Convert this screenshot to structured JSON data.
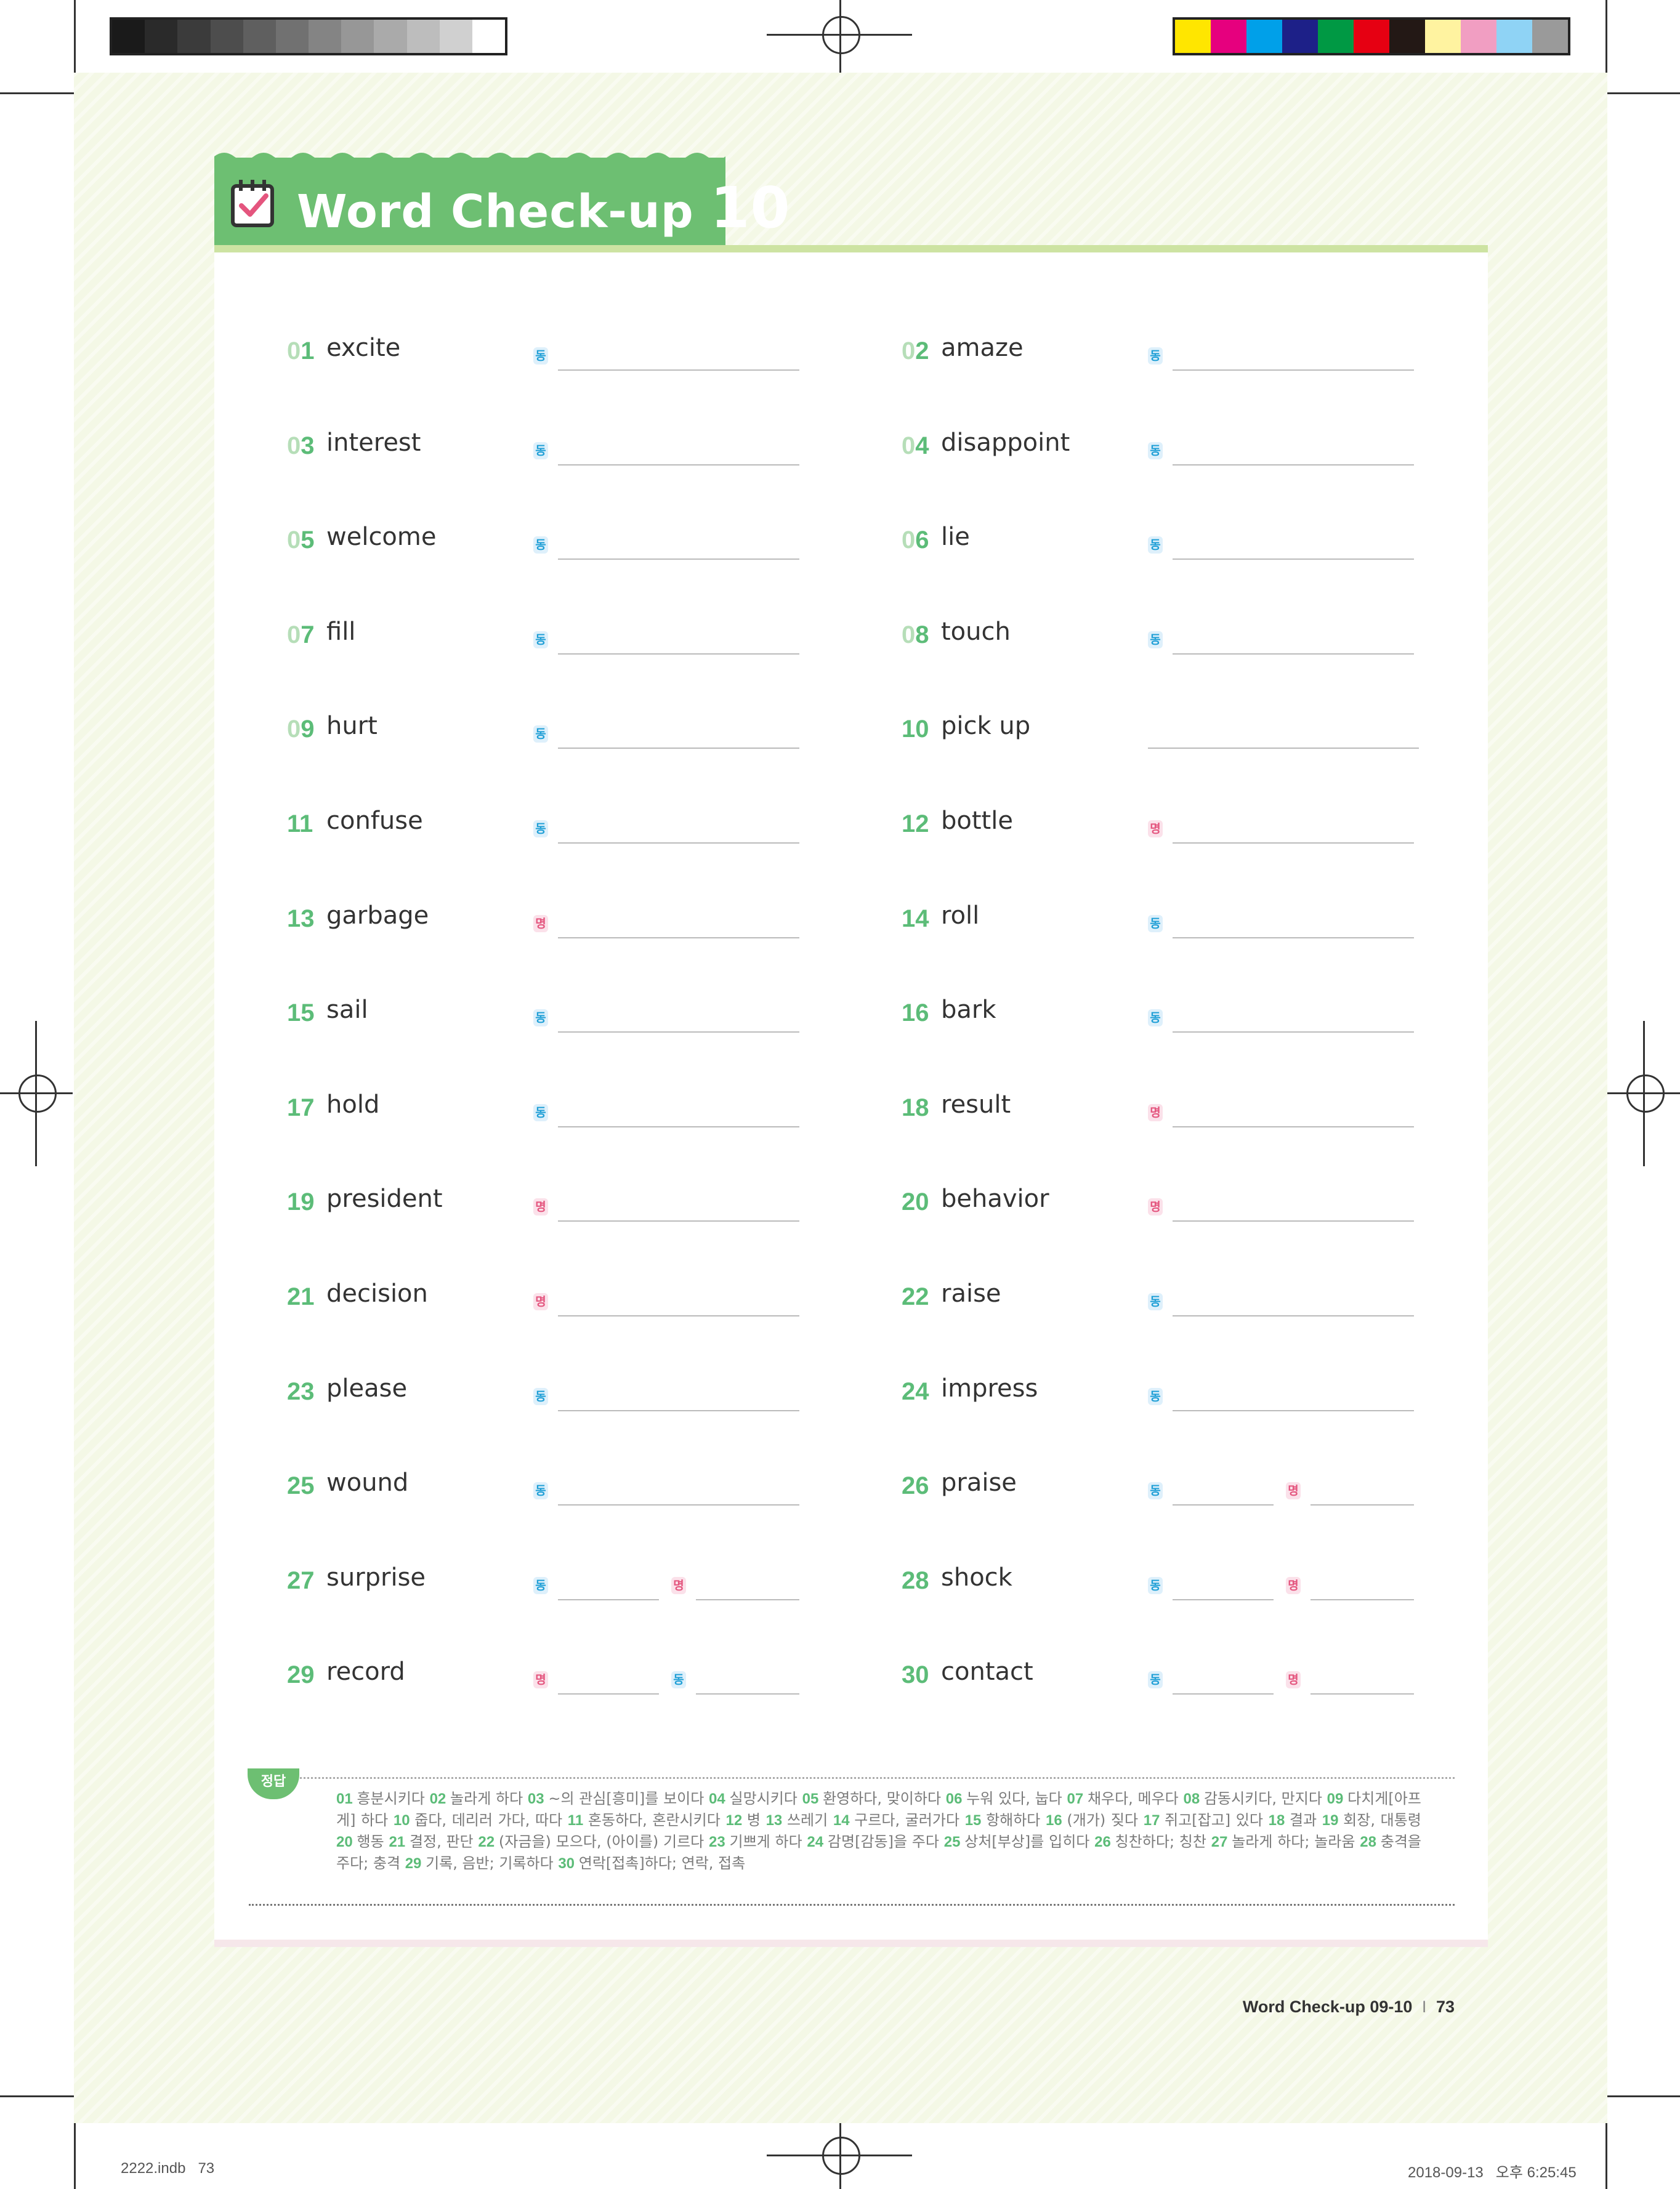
{
  "header": {
    "title": "Word Check-up",
    "number": "10"
  },
  "badges": {
    "verb": "동",
    "noun": "명"
  },
  "entries": [
    {
      "num": "01",
      "word": "excite",
      "slots": [
        "v"
      ]
    },
    {
      "num": "02",
      "word": "amaze",
      "slots": [
        "v"
      ]
    },
    {
      "num": "03",
      "word": "interest",
      "slots": [
        "v"
      ]
    },
    {
      "num": "04",
      "word": "disappoint",
      "slots": [
        "v"
      ]
    },
    {
      "num": "05",
      "word": "welcome",
      "slots": [
        "v"
      ]
    },
    {
      "num": "06",
      "word": "lie",
      "slots": [
        "v"
      ]
    },
    {
      "num": "07",
      "word": "fill",
      "slots": [
        "v"
      ]
    },
    {
      "num": "08",
      "word": "touch",
      "slots": [
        "v"
      ]
    },
    {
      "num": "09",
      "word": "hurt",
      "slots": [
        "v"
      ]
    },
    {
      "num": "10",
      "word": "pick up",
      "slots": []
    },
    {
      "num": "11",
      "word": "confuse",
      "slots": [
        "v"
      ]
    },
    {
      "num": "12",
      "word": "bottle",
      "slots": [
        "n"
      ]
    },
    {
      "num": "13",
      "word": "garbage",
      "slots": [
        "n"
      ]
    },
    {
      "num": "14",
      "word": "roll",
      "slots": [
        "v"
      ]
    },
    {
      "num": "15",
      "word": "sail",
      "slots": [
        "v"
      ]
    },
    {
      "num": "16",
      "word": "bark",
      "slots": [
        "v"
      ]
    },
    {
      "num": "17",
      "word": "hold",
      "slots": [
        "v"
      ]
    },
    {
      "num": "18",
      "word": "result",
      "slots": [
        "n"
      ]
    },
    {
      "num": "19",
      "word": "president",
      "slots": [
        "n"
      ]
    },
    {
      "num": "20",
      "word": "behavior",
      "slots": [
        "n"
      ]
    },
    {
      "num": "21",
      "word": "decision",
      "slots": [
        "n"
      ]
    },
    {
      "num": "22",
      "word": "raise",
      "slots": [
        "v"
      ]
    },
    {
      "num": "23",
      "word": "please",
      "slots": [
        "v"
      ]
    },
    {
      "num": "24",
      "word": "impress",
      "slots": [
        "v"
      ]
    },
    {
      "num": "25",
      "word": "wound",
      "slots": [
        "v"
      ]
    },
    {
      "num": "26",
      "word": "praise",
      "slots": [
        "v",
        "n"
      ]
    },
    {
      "num": "27",
      "word": "surprise",
      "slots": [
        "v",
        "n"
      ]
    },
    {
      "num": "28",
      "word": "shock",
      "slots": [
        "v",
        "n"
      ]
    },
    {
      "num": "29",
      "word": "record",
      "slots": [
        "n",
        "v"
      ]
    },
    {
      "num": "30",
      "word": "contact",
      "slots": [
        "v",
        "n"
      ]
    }
  ],
  "answers": {
    "label": "정답",
    "items": [
      {
        "n": "01",
        "t": "흥분시키다"
      },
      {
        "n": "02",
        "t": "놀라게 하다"
      },
      {
        "n": "03",
        "t": "~의 관심[흥미]를 보이다"
      },
      {
        "n": "04",
        "t": "실망시키다"
      },
      {
        "n": "05",
        "t": "환영하다, 맞이하다"
      },
      {
        "n": "06",
        "t": "누워 있다, 눕다"
      },
      {
        "n": "07",
        "t": "채우다, 메우다"
      },
      {
        "n": "08",
        "t": "감동시키다, 만지다"
      },
      {
        "n": "09",
        "t": "다치게[아프게] 하다"
      },
      {
        "n": "10",
        "t": "줍다, 데리러 가다, 따다"
      },
      {
        "n": "11",
        "t": "혼동하다, 혼란시키다"
      },
      {
        "n": "12",
        "t": "병"
      },
      {
        "n": "13",
        "t": "쓰레기"
      },
      {
        "n": "14",
        "t": "구르다, 굴러가다"
      },
      {
        "n": "15",
        "t": "항해하다"
      },
      {
        "n": "16",
        "t": "(개가) 짖다"
      },
      {
        "n": "17",
        "t": "쥐고[잡고] 있다"
      },
      {
        "n": "18",
        "t": "결과"
      },
      {
        "n": "19",
        "t": "회장, 대통령"
      },
      {
        "n": "20",
        "t": "행동"
      },
      {
        "n": "21",
        "t": "결정, 판단"
      },
      {
        "n": "22",
        "t": "(자금을) 모으다, (아이를) 기르다"
      },
      {
        "n": "23",
        "t": "기쁘게 하다"
      },
      {
        "n": "24",
        "t": "감명[감동]을 주다"
      },
      {
        "n": "25",
        "t": "상처[부상]를 입히다"
      },
      {
        "n": "26",
        "t": "칭찬하다; 칭찬"
      },
      {
        "n": "27",
        "t": "놀라게 하다; 놀라움"
      },
      {
        "n": "28",
        "t": "충격을 주다; 충격"
      },
      {
        "n": "29",
        "t": "기록, 음반; 기록하다"
      },
      {
        "n": "30",
        "t": "연락[접촉]하다; 연락, 접촉"
      }
    ]
  },
  "footer": {
    "label": "Word Check-up 09-10",
    "separator": "I",
    "page": "73"
  },
  "slug": {
    "left": "2222.indb   73",
    "right": "2018-09-13   오후 6:25:45"
  },
  "colors": {
    "accent_green": "#6dbf72",
    "verb_blue": "#1f9fd6",
    "noun_pink": "#e4557e"
  }
}
